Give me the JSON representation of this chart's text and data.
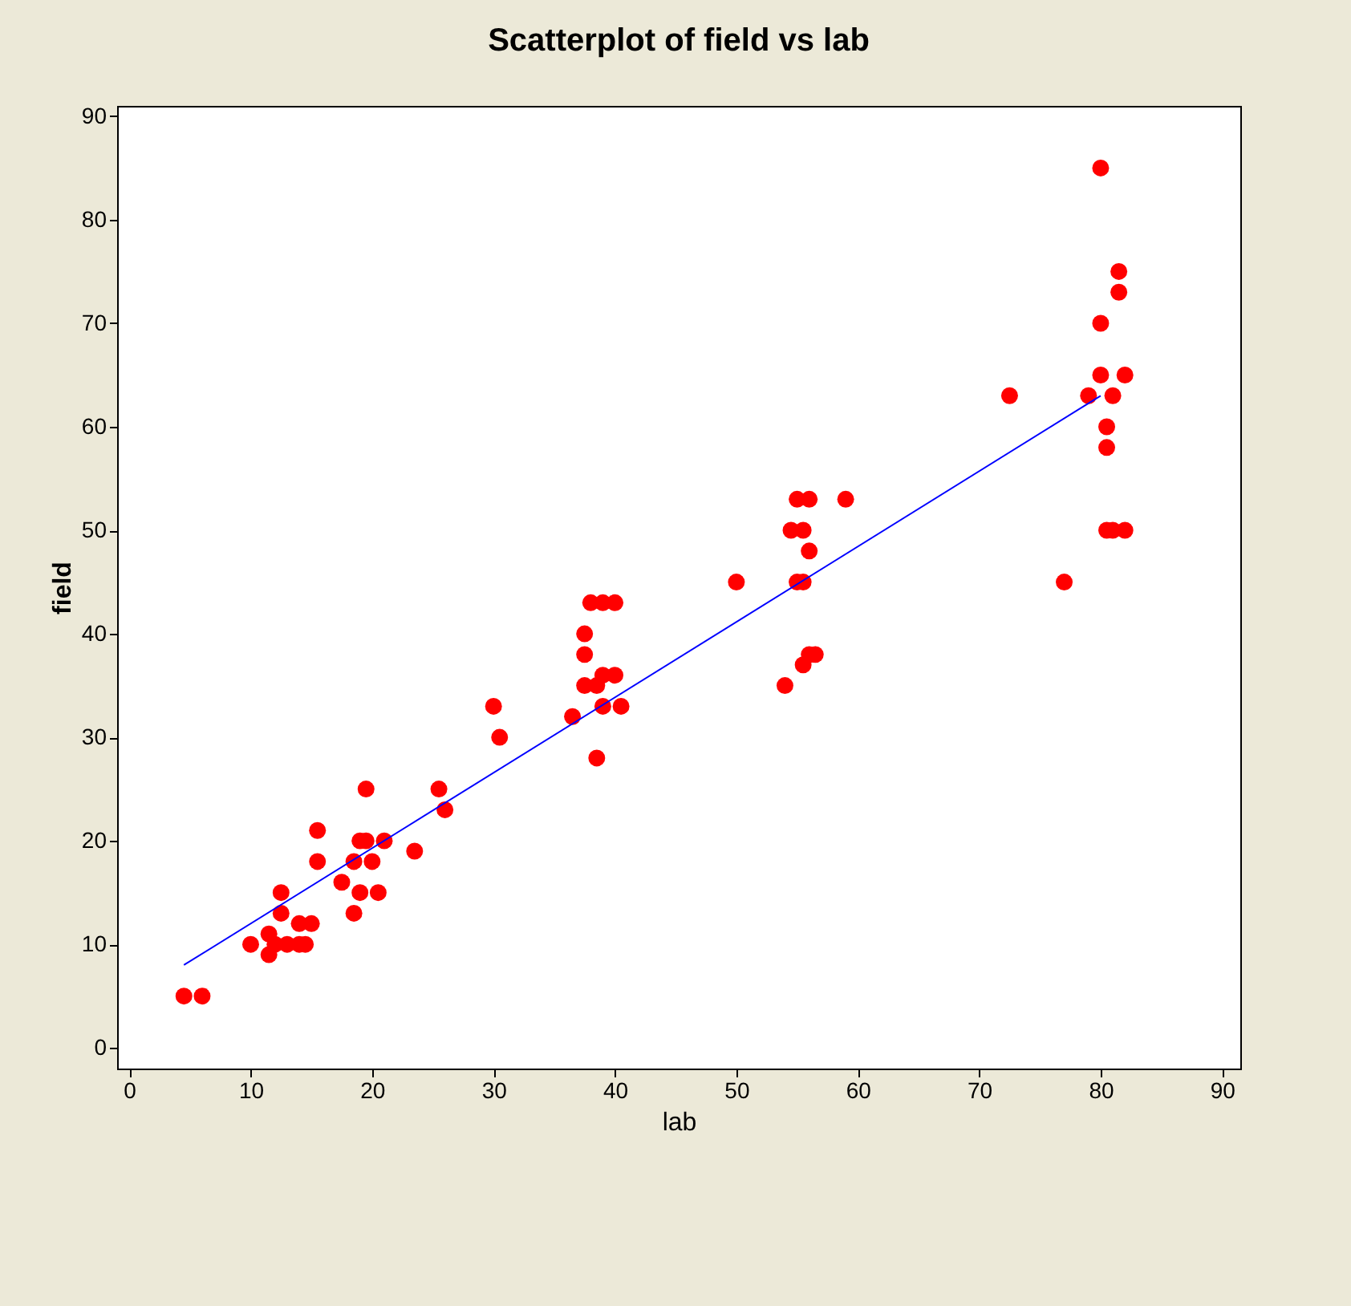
{
  "chart_data": {
    "type": "scatter",
    "title": "Scatterplot of field vs lab",
    "xlabel": "lab",
    "ylabel": "field",
    "xlim": [
      -1,
      91.5
    ],
    "ylim": [
      -2,
      91
    ],
    "xticks": [
      0,
      10,
      20,
      30,
      40,
      50,
      60,
      70,
      80,
      90
    ],
    "yticks": [
      0,
      10,
      20,
      30,
      40,
      50,
      60,
      70,
      80,
      90
    ],
    "grid": false,
    "marker": "circle",
    "series": [
      {
        "color": "#ff0000",
        "x": [
          4.5,
          6,
          10,
          11.5,
          11.5,
          12,
          12.5,
          12.5,
          13,
          14,
          14,
          14.5,
          15,
          15.5,
          15.5,
          17.5,
          18.5,
          18.5,
          19,
          19,
          19.5,
          19.5,
          20,
          20.5,
          21,
          23.5,
          25.5,
          26,
          30,
          30.5,
          36.5,
          37.5,
          37.5,
          37.5,
          38,
          38.5,
          38.5,
          39,
          39,
          39,
          40,
          40,
          40.5,
          50,
          54,
          54.5,
          55,
          55,
          55.5,
          55.5,
          55.5,
          56,
          56,
          56,
          56.5,
          59,
          72.5,
          77,
          79,
          80,
          80,
          80,
          80.5,
          80.5,
          80.5,
          81,
          81,
          81.5,
          81.5,
          82,
          82
        ],
        "values": [
          5,
          5,
          10,
          9,
          11,
          10,
          15,
          13,
          10,
          12,
          10,
          10,
          12,
          21,
          18,
          16,
          13,
          18,
          20,
          15,
          25,
          20,
          18,
          15,
          20,
          19,
          25,
          23,
          33,
          30,
          32,
          40,
          38,
          35,
          43,
          28,
          35,
          43,
          36,
          33,
          43,
          36,
          33,
          45,
          35,
          50,
          53,
          45,
          50,
          45,
          37,
          53,
          48,
          38,
          38,
          53,
          63,
          45,
          63,
          85,
          70,
          65,
          60,
          58,
          50,
          50,
          63,
          73,
          75,
          65,
          50
        ]
      },
      {
        "type": "line",
        "color": "#0000ff",
        "marker": "none",
        "x": [
          4.5,
          80
        ],
        "values": [
          8,
          63
        ]
      }
    ]
  }
}
